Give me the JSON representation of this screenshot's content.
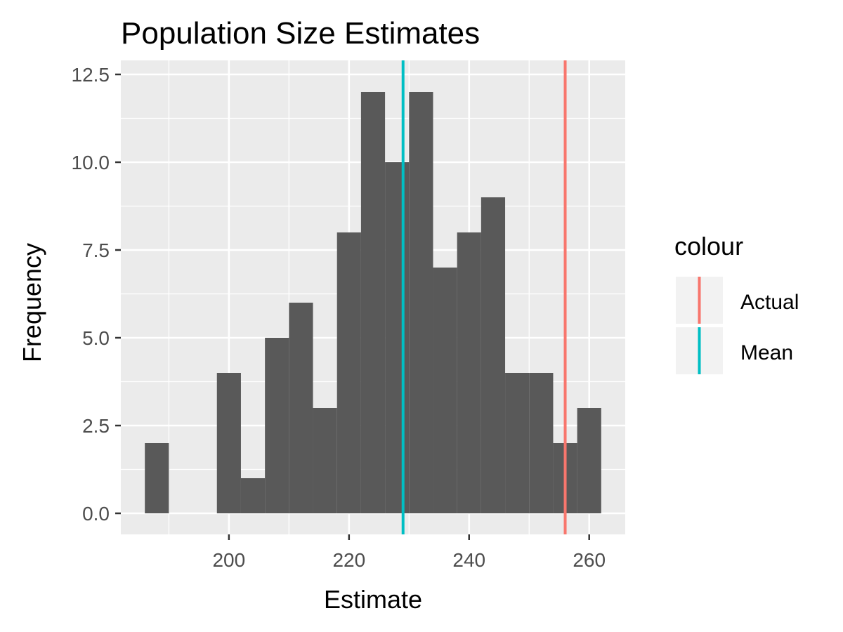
{
  "chart_data": {
    "type": "histogram",
    "title": "Population Size Estimates",
    "xlabel": "Estimate",
    "ylabel": "Frequency",
    "xlim": [
      182,
      266
    ],
    "ylim": [
      -0.6,
      12.9
    ],
    "x_ticks": [
      {
        "value": 200,
        "label": "200"
      },
      {
        "value": 220,
        "label": "220"
      },
      {
        "value": 240,
        "label": "240"
      },
      {
        "value": 260,
        "label": "260"
      }
    ],
    "y_ticks": [
      {
        "value": 0,
        "label": "0.0"
      },
      {
        "value": 2.5,
        "label": "2.5"
      },
      {
        "value": 5,
        "label": "5.0"
      },
      {
        "value": 7.5,
        "label": "7.5"
      },
      {
        "value": 10,
        "label": "10.0"
      },
      {
        "value": 12.5,
        "label": "12.5"
      }
    ],
    "bin_width": 4,
    "bin_start": 186,
    "counts": [
      2,
      0,
      0,
      4,
      1,
      5,
      6,
      3,
      8,
      12,
      10,
      12,
      7,
      8,
      9,
      4,
      4,
      2,
      3
    ],
    "bar_color": "#595959",
    "panel_background": "#ebebeb",
    "grid": true,
    "reference_lines": [
      {
        "name": "Actual",
        "x": 256,
        "color": "#F8766D"
      },
      {
        "name": "Mean",
        "x": 229,
        "color": "#00BFC4"
      }
    ],
    "legend": {
      "title": "colour",
      "position": "right",
      "entries": [
        "Actual",
        "Mean"
      ]
    }
  }
}
